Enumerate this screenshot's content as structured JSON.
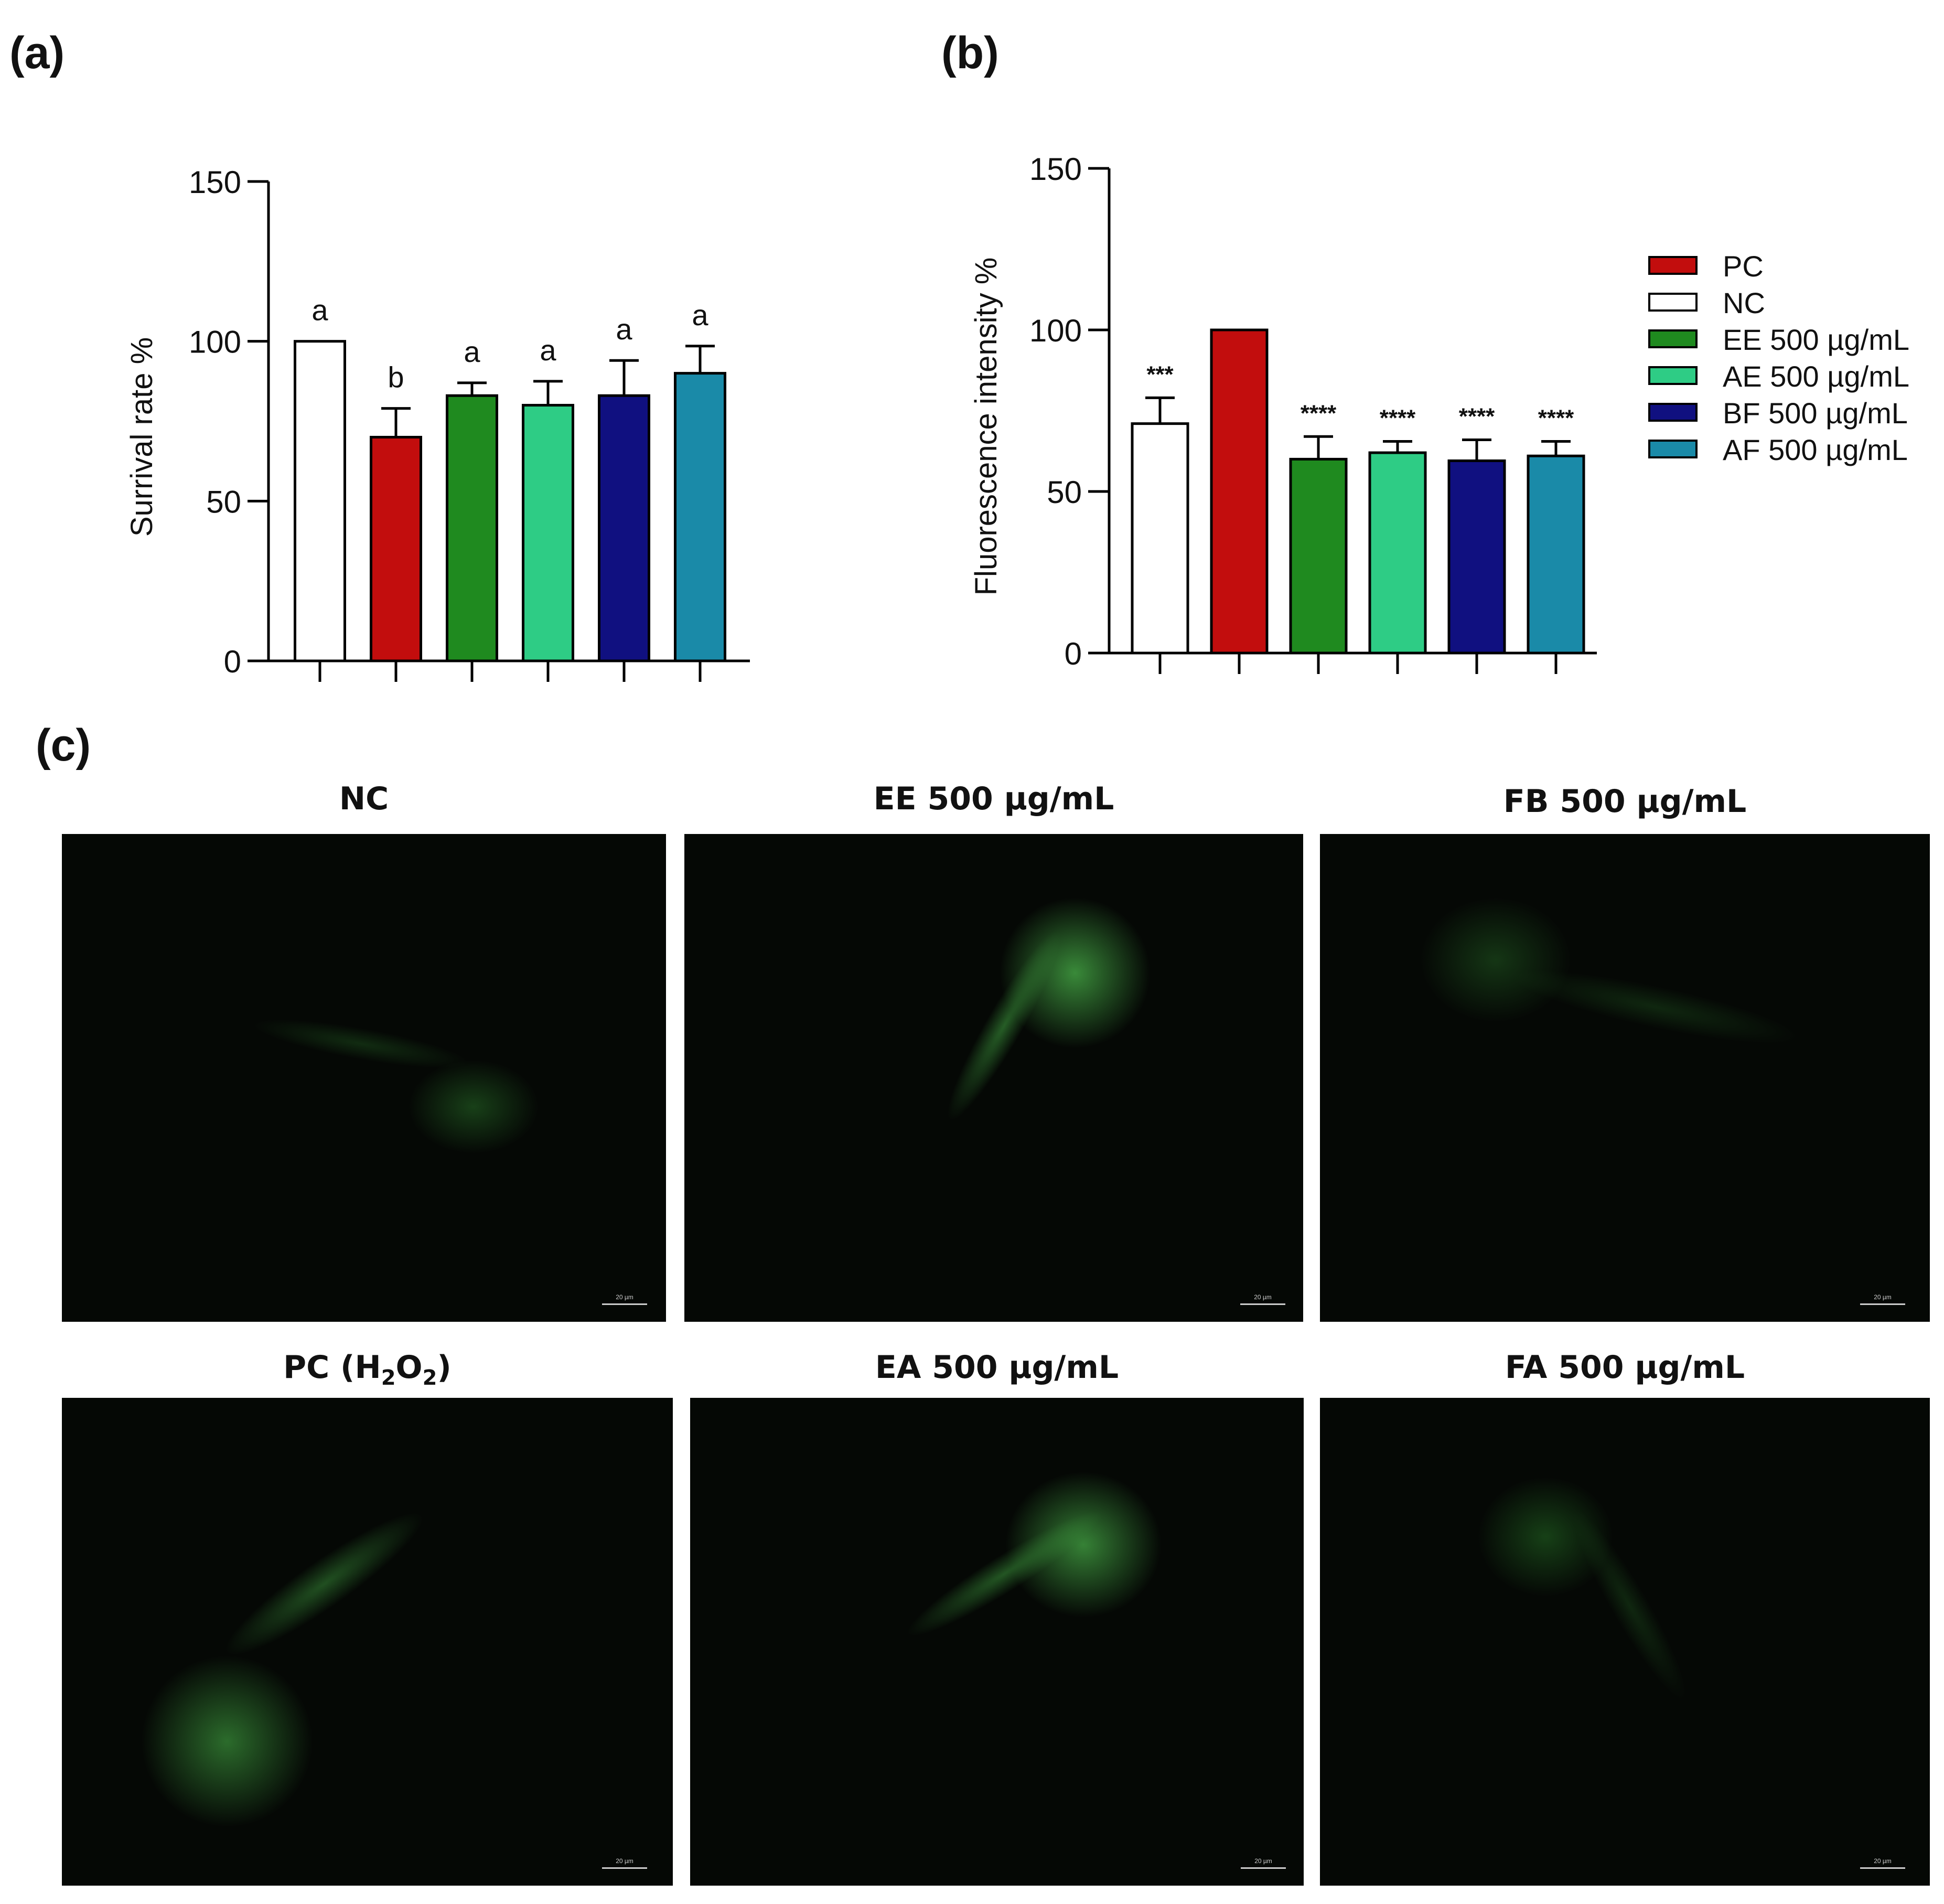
{
  "panel_labels": {
    "a": "(a)",
    "b": "(b)",
    "c": "(c)"
  },
  "colors": {
    "NC": "#ffffff",
    "PC": "#c20d0d",
    "EE": "#1f8a1f",
    "AE": "#2ecc85",
    "BF": "#101080",
    "AF": "#1a8aa8"
  },
  "chart_data": [
    {
      "type": "bar",
      "panel": "a",
      "ylabel": "Surrival rate %",
      "ylim": [
        0,
        150
      ],
      "yticks": [
        "0",
        "50",
        "100",
        "150"
      ],
      "categories": [
        "NC",
        "PC",
        "EE",
        "AE",
        "BF",
        "AF"
      ],
      "values": [
        100,
        70,
        83,
        80,
        83,
        90
      ],
      "errors": [
        0,
        9,
        4,
        7.5,
        11,
        8.5
      ],
      "annotations": [
        "a",
        "b",
        "a",
        "a",
        "a",
        "a"
      ]
    },
    {
      "type": "bar",
      "panel": "b",
      "ylabel": "Fluorescence intensity %",
      "ylim": [
        0,
        150
      ],
      "yticks": [
        "0",
        "50",
        "100",
        "150"
      ],
      "categories": [
        "NC",
        "PC",
        "EE",
        "AE",
        "BF",
        "AF"
      ],
      "values": [
        71,
        100,
        60,
        62,
        59.5,
        61
      ],
      "errors": [
        8,
        0,
        7,
        3.5,
        6.5,
        4.5
      ],
      "annotations": [
        "***",
        "",
        "****",
        "****",
        "****",
        "****"
      ],
      "legend": [
        {
          "key": "PC",
          "label": "PC"
        },
        {
          "key": "NC",
          "label": "NC"
        },
        {
          "key": "EE",
          "label": "EE 500 µg/mL"
        },
        {
          "key": "AE",
          "label": "AE 500 µg/mL"
        },
        {
          "key": "BF",
          "label": "BF 500 µg/mL"
        },
        {
          "key": "AF",
          "label": "AF 500 µg/mL"
        }
      ]
    }
  ],
  "micrographs": [
    {
      "title": "NC",
      "scale": "20 µm"
    },
    {
      "title": "EE 500 µg/mL",
      "scale": "20 µm"
    },
    {
      "title": "FB 500 µg/mL",
      "scale": "20 µm"
    },
    {
      "title_main": "PC (H",
      "title_sub1": "2",
      "title_mid": "O",
      "title_sub2": "2",
      "title_end": ")",
      "scale": "20 µm"
    },
    {
      "title": "EA 500 µg/mL",
      "scale": "20 µm"
    },
    {
      "title": "FA 500 µg/mL",
      "scale": "20 µm"
    }
  ]
}
